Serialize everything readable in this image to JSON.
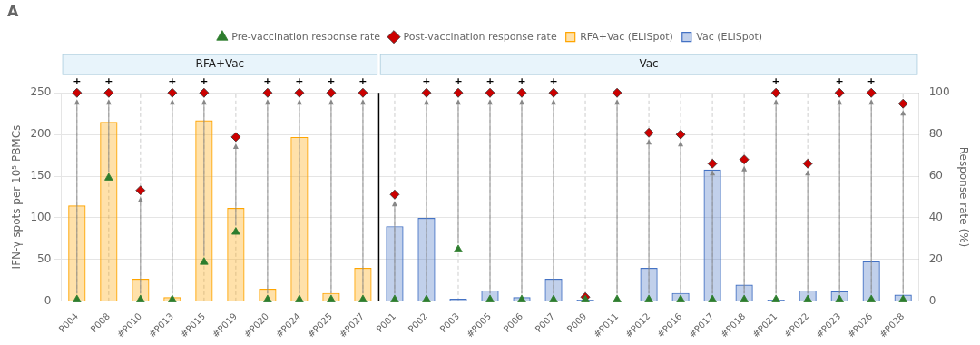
{
  "chart_data": {
    "type": "bar",
    "title": "A",
    "ylabel": "IFN-γ spots per 10⁵ PBMCs",
    "y2label": "Response rate (%)",
    "categories": [
      "P004",
      "P008",
      "#P010",
      "#P013",
      "#P015",
      "#P019",
      "#P020",
      "#P024",
      "#P025",
      "#P027",
      "P001",
      "P002",
      "P003",
      "#P005",
      "P006",
      "P007",
      "P009",
      "#P011",
      "#P012",
      "#P016",
      "#P017",
      "#P018",
      "#P021",
      "#P022",
      "#P023",
      "#P026",
      "#P028"
    ],
    "series": [
      {
        "name": "RFA+Vac (ELISpot)",
        "type": "bar",
        "color": "#FFA500",
        "values": [
          115,
          215,
          27,
          5,
          217,
          112,
          15,
          197,
          10,
          40,
          null,
          null,
          null,
          null,
          null,
          null,
          null,
          null,
          null,
          null,
          null,
          null,
          null,
          null,
          null,
          null,
          null
        ]
      },
      {
        "name": "Vac (ELISpot)",
        "type": "bar",
        "color": "#4472C4",
        "values": [
          null,
          null,
          null,
          null,
          null,
          null,
          null,
          null,
          null,
          null,
          90,
          100,
          3,
          13,
          5,
          27,
          2,
          1,
          40,
          10,
          158,
          20,
          2,
          13,
          12,
          48,
          8
        ]
      },
      {
        "name": "Pre-vaccination response rate",
        "type": "scatter",
        "marker": "triangle",
        "color": "#2D7D2D",
        "values": [
          2,
          148,
          2,
          2,
          47,
          83,
          2,
          2,
          2,
          2,
          2,
          2,
          62,
          2,
          2,
          2,
          2,
          2,
          2,
          2,
          2,
          2,
          2,
          2,
          2,
          2,
          2
        ]
      },
      {
        "name": "Post-vaccination response rate",
        "type": "scatter",
        "marker": "diamond",
        "color": "#CC0000",
        "values": [
          250,
          250,
          133,
          250,
          250,
          197,
          250,
          250,
          250,
          250,
          128,
          250,
          250,
          250,
          250,
          250,
          5,
          250,
          202,
          200,
          165,
          170,
          250,
          165,
          250,
          250,
          237
        ]
      }
    ],
    "groups": [
      {
        "name": "RFA+Vac",
        "from": "P004",
        "to": "#P027"
      },
      {
        "name": "Vac",
        "from": "P001",
        "to": "#P028"
      }
    ],
    "annotations": [
      {
        "text": "+",
        "x": "P004",
        "y": 250
      },
      {
        "text": "+",
        "x": "P008",
        "y": 250
      },
      {
        "text": "+",
        "x": "#P013",
        "y": 250
      },
      {
        "text": "+",
        "x": "#P015",
        "y": 250
      },
      {
        "text": "+",
        "x": "#P020",
        "y": 250
      },
      {
        "text": "+",
        "x": "#P024",
        "y": 250
      },
      {
        "text": "+",
        "x": "#P025",
        "y": 250
      },
      {
        "text": "+",
        "x": "#P027",
        "y": 250
      },
      {
        "text": "+",
        "x": "P002",
        "y": 250
      },
      {
        "text": "+",
        "x": "P003",
        "y": 250
      },
      {
        "text": "+",
        "x": "#P005",
        "y": 250
      },
      {
        "text": "+",
        "x": "P006",
        "y": 250
      },
      {
        "text": "+",
        "x": "P007",
        "y": 250
      },
      {
        "text": "+",
        "x": "#P021",
        "y": 250
      },
      {
        "text": "+",
        "x": "#P023",
        "y": 250
      },
      {
        "text": "+",
        "x": "#P026",
        "y": 250
      }
    ],
    "ylim": [
      0,
      250
    ],
    "yticks": [
      0,
      50,
      100,
      150,
      200,
      250
    ],
    "y2lim": [
      0,
      100
    ],
    "y2ticks": [
      0,
      20,
      40,
      60,
      80,
      100
    ],
    "grid": true,
    "legend": "top"
  }
}
